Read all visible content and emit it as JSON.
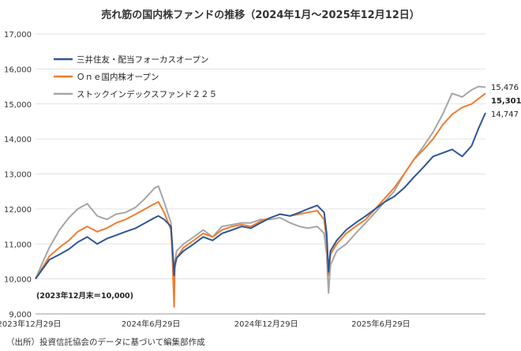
{
  "chart_data": {
    "type": "line",
    "title": "売れ筋の国内株ファンドの推移（2024年1月～2025年12月12日）",
    "xlabel": "",
    "ylabel": "",
    "x_ticks": [
      "2023年12月29日",
      "2024年6月29日",
      "2024年12月29日",
      "2025年6月29日"
    ],
    "ylim": [
      9000,
      17000
    ],
    "y_ticks": [
      "9,000",
      "10,000",
      "11,000",
      "12,000",
      "13,000",
      "14,000",
      "15,000",
      "16,000",
      "17,000"
    ],
    "grid": true,
    "legend_position": "top-left",
    "base_note": "(2023年12月末＝10,000)",
    "x_dates": [
      "2023-12-29",
      "2024-01-10",
      "2024-01-20",
      "2024-02-05",
      "2024-02-20",
      "2024-03-05",
      "2024-03-20",
      "2024-04-05",
      "2024-04-20",
      "2024-05-05",
      "2024-05-20",
      "2024-06-05",
      "2024-06-20",
      "2024-07-05",
      "2024-07-11",
      "2024-07-20",
      "2024-07-31",
      "2024-08-02",
      "2024-08-05",
      "2024-08-06",
      "2024-08-09",
      "2024-08-20",
      "2024-09-05",
      "2024-09-20",
      "2024-10-05",
      "2024-10-20",
      "2024-11-05",
      "2024-11-20",
      "2024-12-05",
      "2024-12-20",
      "2025-01-05",
      "2025-01-20",
      "2025-02-05",
      "2025-02-20",
      "2025-03-05",
      "2025-03-20",
      "2025-03-31",
      "2025-04-04",
      "2025-04-07",
      "2025-04-10",
      "2025-04-20",
      "2025-05-05",
      "2025-05-20",
      "2025-06-05",
      "2025-06-20",
      "2025-07-05",
      "2025-07-20",
      "2025-08-05",
      "2025-08-20",
      "2025-09-05",
      "2025-09-20",
      "2025-10-05",
      "2025-10-20",
      "2025-11-05",
      "2025-11-20",
      "2025-12-01",
      "2025-12-12"
    ],
    "series": [
      {
        "name": "三井住友・配当フォーカスオープン",
        "color": "#2f5597",
        "values": [
          10000,
          10300,
          10550,
          10700,
          10850,
          11050,
          11200,
          11000,
          11150,
          11250,
          11350,
          11450,
          11600,
          11750,
          11800,
          11700,
          11500,
          11000,
          10100,
          10400,
          10600,
          10800,
          11000,
          11200,
          11100,
          11300,
          11400,
          11500,
          11450,
          11600,
          11750,
          11850,
          11800,
          11900,
          12000,
          12100,
          11900,
          11300,
          10200,
          10800,
          11100,
          11400,
          11600,
          11800,
          12000,
          12200,
          12350,
          12600,
          12900,
          13200,
          13500,
          13600,
          13700,
          13500,
          13800,
          14300,
          14747
        ]
      },
      {
        "name": "Ｏｎｅ国内株オープン",
        "color": "#ed7d31",
        "values": [
          10000,
          10350,
          10650,
          10900,
          11100,
          11350,
          11500,
          11350,
          11450,
          11600,
          11700,
          11850,
          12000,
          12150,
          12200,
          11900,
          11400,
          10700,
          9200,
          10300,
          10600,
          10900,
          11100,
          11300,
          11200,
          11400,
          11500,
          11550,
          11500,
          11650,
          11750,
          11850,
          11800,
          11850,
          11900,
          11950,
          11700,
          11100,
          10100,
          10700,
          11000,
          11300,
          11500,
          11700,
          12000,
          12300,
          12600,
          13000,
          13400,
          13700,
          14000,
          14400,
          14700,
          14900,
          15000,
          15150,
          15301
        ]
      },
      {
        "name": "ストックインデックスファンド２２５",
        "color": "#a5a5a5",
        "values": [
          10000,
          10500,
          10900,
          11400,
          11750,
          12000,
          12150,
          11800,
          11700,
          11850,
          11900,
          12050,
          12300,
          12600,
          12650,
          12200,
          11600,
          10800,
          9700,
          10500,
          10800,
          11000,
          11200,
          11400,
          11200,
          11500,
          11550,
          11600,
          11600,
          11700,
          11700,
          11750,
          11600,
          11500,
          11450,
          11500,
          11300,
          10700,
          9600,
          10400,
          10800,
          11000,
          11300,
          11600,
          11900,
          12200,
          12500,
          13000,
          13400,
          13800,
          14200,
          14700,
          15300,
          15200,
          15400,
          15500,
          15476
        ]
      }
    ],
    "end_labels": [
      "15,476",
      "15,301",
      "14,747"
    ]
  },
  "source": "（出所）投資信託協会のデータに基づいて編集部作成"
}
